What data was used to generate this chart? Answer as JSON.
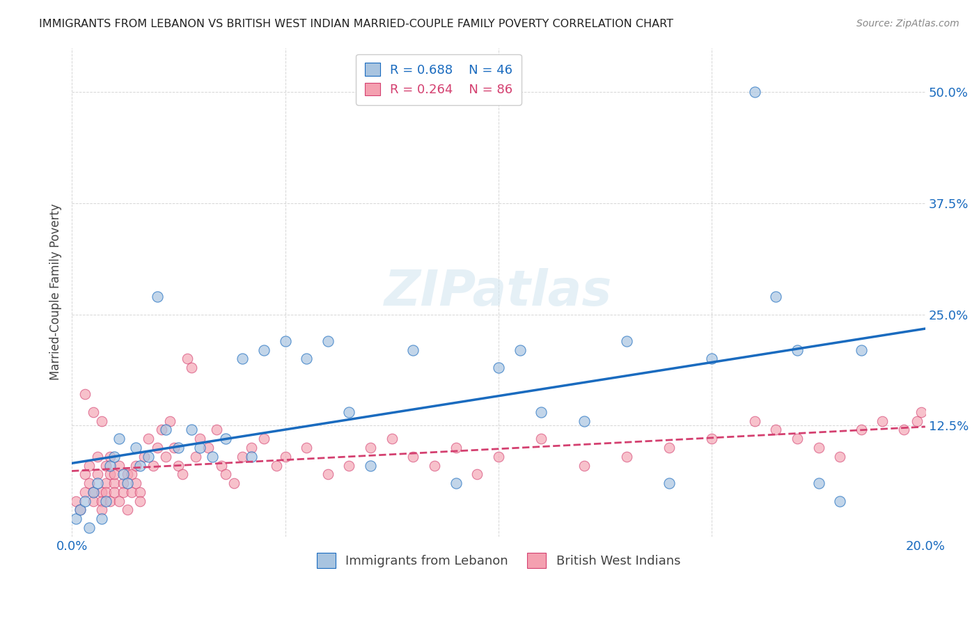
{
  "title": "IMMIGRANTS FROM LEBANON VS BRITISH WEST INDIAN MARRIED-COUPLE FAMILY POVERTY CORRELATION CHART",
  "source": "Source: ZipAtlas.com",
  "ylabel": "Married-Couple Family Poverty",
  "legend1_label": "Immigrants from Lebanon",
  "legend2_label": "British West Indians",
  "r1": 0.688,
  "n1": 46,
  "r2": 0.264,
  "n2": 86,
  "xlim": [
    0.0,
    0.2
  ],
  "ylim": [
    0.0,
    0.55
  ],
  "xticks": [
    0.0,
    0.05,
    0.1,
    0.15,
    0.2
  ],
  "xtick_labels": [
    "0.0%",
    "",
    "",
    "",
    "20.0%"
  ],
  "ytick_labels": [
    "",
    "12.5%",
    "25.0%",
    "37.5%",
    "50.0%"
  ],
  "yticks": [
    0.0,
    0.125,
    0.25,
    0.375,
    0.5
  ],
  "color_lebanon": "#a8c4e0",
  "color_bwi": "#f4a0b0",
  "line_color_lebanon": "#1a6bbf",
  "line_color_bwi": "#d44070",
  "watermark": "ZIPatlas",
  "lebanon_x": [
    0.001,
    0.002,
    0.003,
    0.004,
    0.005,
    0.006,
    0.007,
    0.008,
    0.009,
    0.01,
    0.011,
    0.012,
    0.013,
    0.015,
    0.016,
    0.018,
    0.02,
    0.022,
    0.025,
    0.028,
    0.03,
    0.033,
    0.036,
    0.04,
    0.042,
    0.045,
    0.05,
    0.055,
    0.06,
    0.065,
    0.07,
    0.08,
    0.09,
    0.1,
    0.105,
    0.11,
    0.12,
    0.13,
    0.14,
    0.15,
    0.16,
    0.165,
    0.17,
    0.175,
    0.18,
    0.185
  ],
  "lebanon_y": [
    0.02,
    0.03,
    0.04,
    0.01,
    0.05,
    0.06,
    0.02,
    0.04,
    0.08,
    0.09,
    0.11,
    0.07,
    0.06,
    0.1,
    0.08,
    0.09,
    0.27,
    0.12,
    0.1,
    0.12,
    0.1,
    0.09,
    0.11,
    0.2,
    0.09,
    0.21,
    0.22,
    0.2,
    0.22,
    0.14,
    0.08,
    0.21,
    0.06,
    0.19,
    0.21,
    0.14,
    0.13,
    0.22,
    0.06,
    0.2,
    0.5,
    0.27,
    0.21,
    0.06,
    0.04,
    0.21
  ],
  "bwi_x": [
    0.001,
    0.002,
    0.003,
    0.003,
    0.004,
    0.004,
    0.005,
    0.005,
    0.006,
    0.006,
    0.007,
    0.007,
    0.007,
    0.008,
    0.008,
    0.008,
    0.009,
    0.009,
    0.009,
    0.01,
    0.01,
    0.01,
    0.011,
    0.011,
    0.012,
    0.012,
    0.013,
    0.013,
    0.014,
    0.014,
    0.015,
    0.015,
    0.016,
    0.016,
    0.017,
    0.018,
    0.019,
    0.02,
    0.021,
    0.022,
    0.023,
    0.024,
    0.025,
    0.026,
    0.027,
    0.028,
    0.029,
    0.03,
    0.032,
    0.034,
    0.035,
    0.036,
    0.038,
    0.04,
    0.042,
    0.045,
    0.048,
    0.05,
    0.055,
    0.06,
    0.065,
    0.07,
    0.075,
    0.08,
    0.085,
    0.09,
    0.095,
    0.1,
    0.11,
    0.12,
    0.13,
    0.14,
    0.15,
    0.16,
    0.165,
    0.17,
    0.175,
    0.18,
    0.185,
    0.19,
    0.195,
    0.198,
    0.199,
    0.003,
    0.005,
    0.007
  ],
  "bwi_y": [
    0.04,
    0.03,
    0.05,
    0.07,
    0.06,
    0.08,
    0.05,
    0.04,
    0.09,
    0.07,
    0.05,
    0.04,
    0.03,
    0.06,
    0.08,
    0.05,
    0.07,
    0.04,
    0.09,
    0.06,
    0.05,
    0.07,
    0.08,
    0.04,
    0.06,
    0.05,
    0.07,
    0.03,
    0.05,
    0.07,
    0.06,
    0.08,
    0.05,
    0.04,
    0.09,
    0.11,
    0.08,
    0.1,
    0.12,
    0.09,
    0.13,
    0.1,
    0.08,
    0.07,
    0.2,
    0.19,
    0.09,
    0.11,
    0.1,
    0.12,
    0.08,
    0.07,
    0.06,
    0.09,
    0.1,
    0.11,
    0.08,
    0.09,
    0.1,
    0.07,
    0.08,
    0.1,
    0.11,
    0.09,
    0.08,
    0.1,
    0.07,
    0.09,
    0.11,
    0.08,
    0.09,
    0.1,
    0.11,
    0.13,
    0.12,
    0.11,
    0.1,
    0.09,
    0.12,
    0.13,
    0.12,
    0.13,
    0.14,
    0.16,
    0.14,
    0.13
  ]
}
